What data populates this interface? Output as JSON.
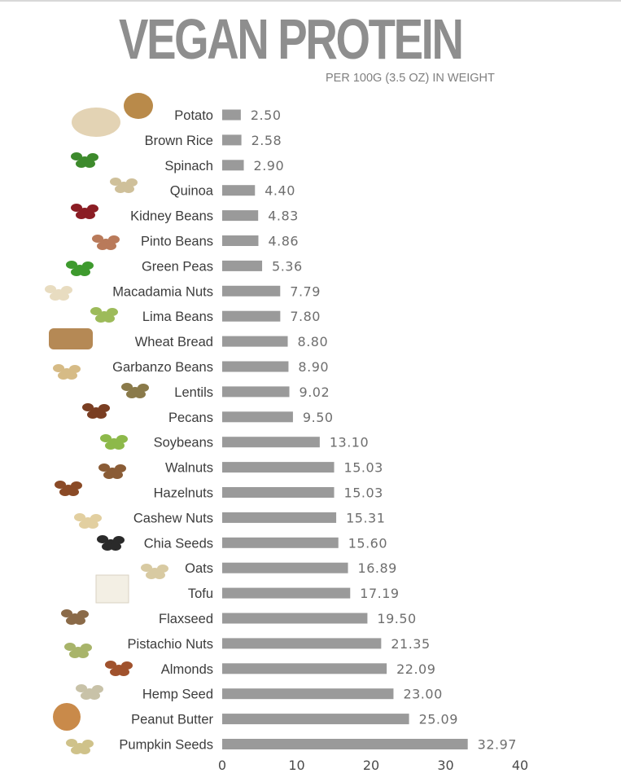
{
  "title": "VEGAN PROTEIN",
  "subtitle": "PER  100G (3.5 OZ) IN WEIGHT",
  "colors": {
    "bar": "#9a9a9a",
    "title": "#8e8e8e",
    "label": "#3c3c3c",
    "value": "#6e6e6e"
  },
  "chart_data": {
    "type": "bar",
    "orientation": "horizontal",
    "title": "VEGAN PROTEIN",
    "subtitle": "PER  100G (3.5 OZ) IN WEIGHT",
    "categories": [
      "Potato",
      "Brown Rice",
      "Spinach",
      "Quinoa",
      "Kidney Beans",
      "Pinto Beans",
      "Green Peas",
      "Macadamia Nuts",
      "Lima Beans",
      "Wheat Bread",
      "Garbanzo Beans",
      "Lentils",
      "Pecans",
      "Soybeans",
      "Walnuts",
      "Hazelnuts",
      "Cashew Nuts",
      "Chia Seeds",
      "Oats",
      "Tofu",
      "Flaxseed",
      "Pistachio Nuts",
      "Almonds",
      "Hemp Seed",
      "Peanut Butter",
      "Pumpkin Seeds"
    ],
    "values": [
      2.5,
      2.58,
      2.9,
      4.4,
      4.83,
      4.86,
      5.36,
      7.79,
      7.8,
      8.8,
      8.9,
      9.02,
      9.5,
      13.1,
      15.03,
      15.03,
      15.31,
      15.6,
      16.89,
      17.19,
      19.5,
      21.35,
      22.09,
      23.0,
      25.09,
      32.97
    ],
    "value_labels": [
      "2.50",
      "2.58",
      "2.90",
      "4.40",
      "4.83",
      "4.86",
      "5.36",
      "7.79",
      "7.80",
      "8.80",
      "8.90",
      "9.02",
      "9.50",
      "13.10",
      "15.03",
      "15.03",
      "15.31",
      "15.60",
      "16.89",
      "17.19",
      "19.50",
      "21.35",
      "22.09",
      "23.00",
      "25.09",
      "32.97"
    ],
    "xticks": [
      "0",
      "10",
      "20",
      "30",
      "40"
    ],
    "xlim": [
      0,
      40
    ],
    "grid": false,
    "legend": "none"
  },
  "food_icons": [
    "rice-and-potato-icon",
    "rice-and-potato-icon",
    "spinach-icon",
    "quinoa-icon",
    "kidney-beans-icon",
    "pinto-beans-icon",
    "green-peas-icon",
    "macadamia-nuts-icon",
    "lima-beans-icon",
    "wheat-bread-icon",
    "garbanzo-beans-icon",
    "lentils-icon",
    "pecans-icon",
    "soybeans-icon",
    "walnuts-icon",
    "hazelnuts-icon",
    "cashew-nuts-icon",
    "chia-seeds-icon",
    "oats-icon",
    "tofu-icon",
    "flaxseed-icon",
    "pistachio-nuts-icon",
    "almonds-icon",
    "hemp-seed-icon",
    "peanut-butter-icon",
    "pumpkin-seeds-icon"
  ]
}
